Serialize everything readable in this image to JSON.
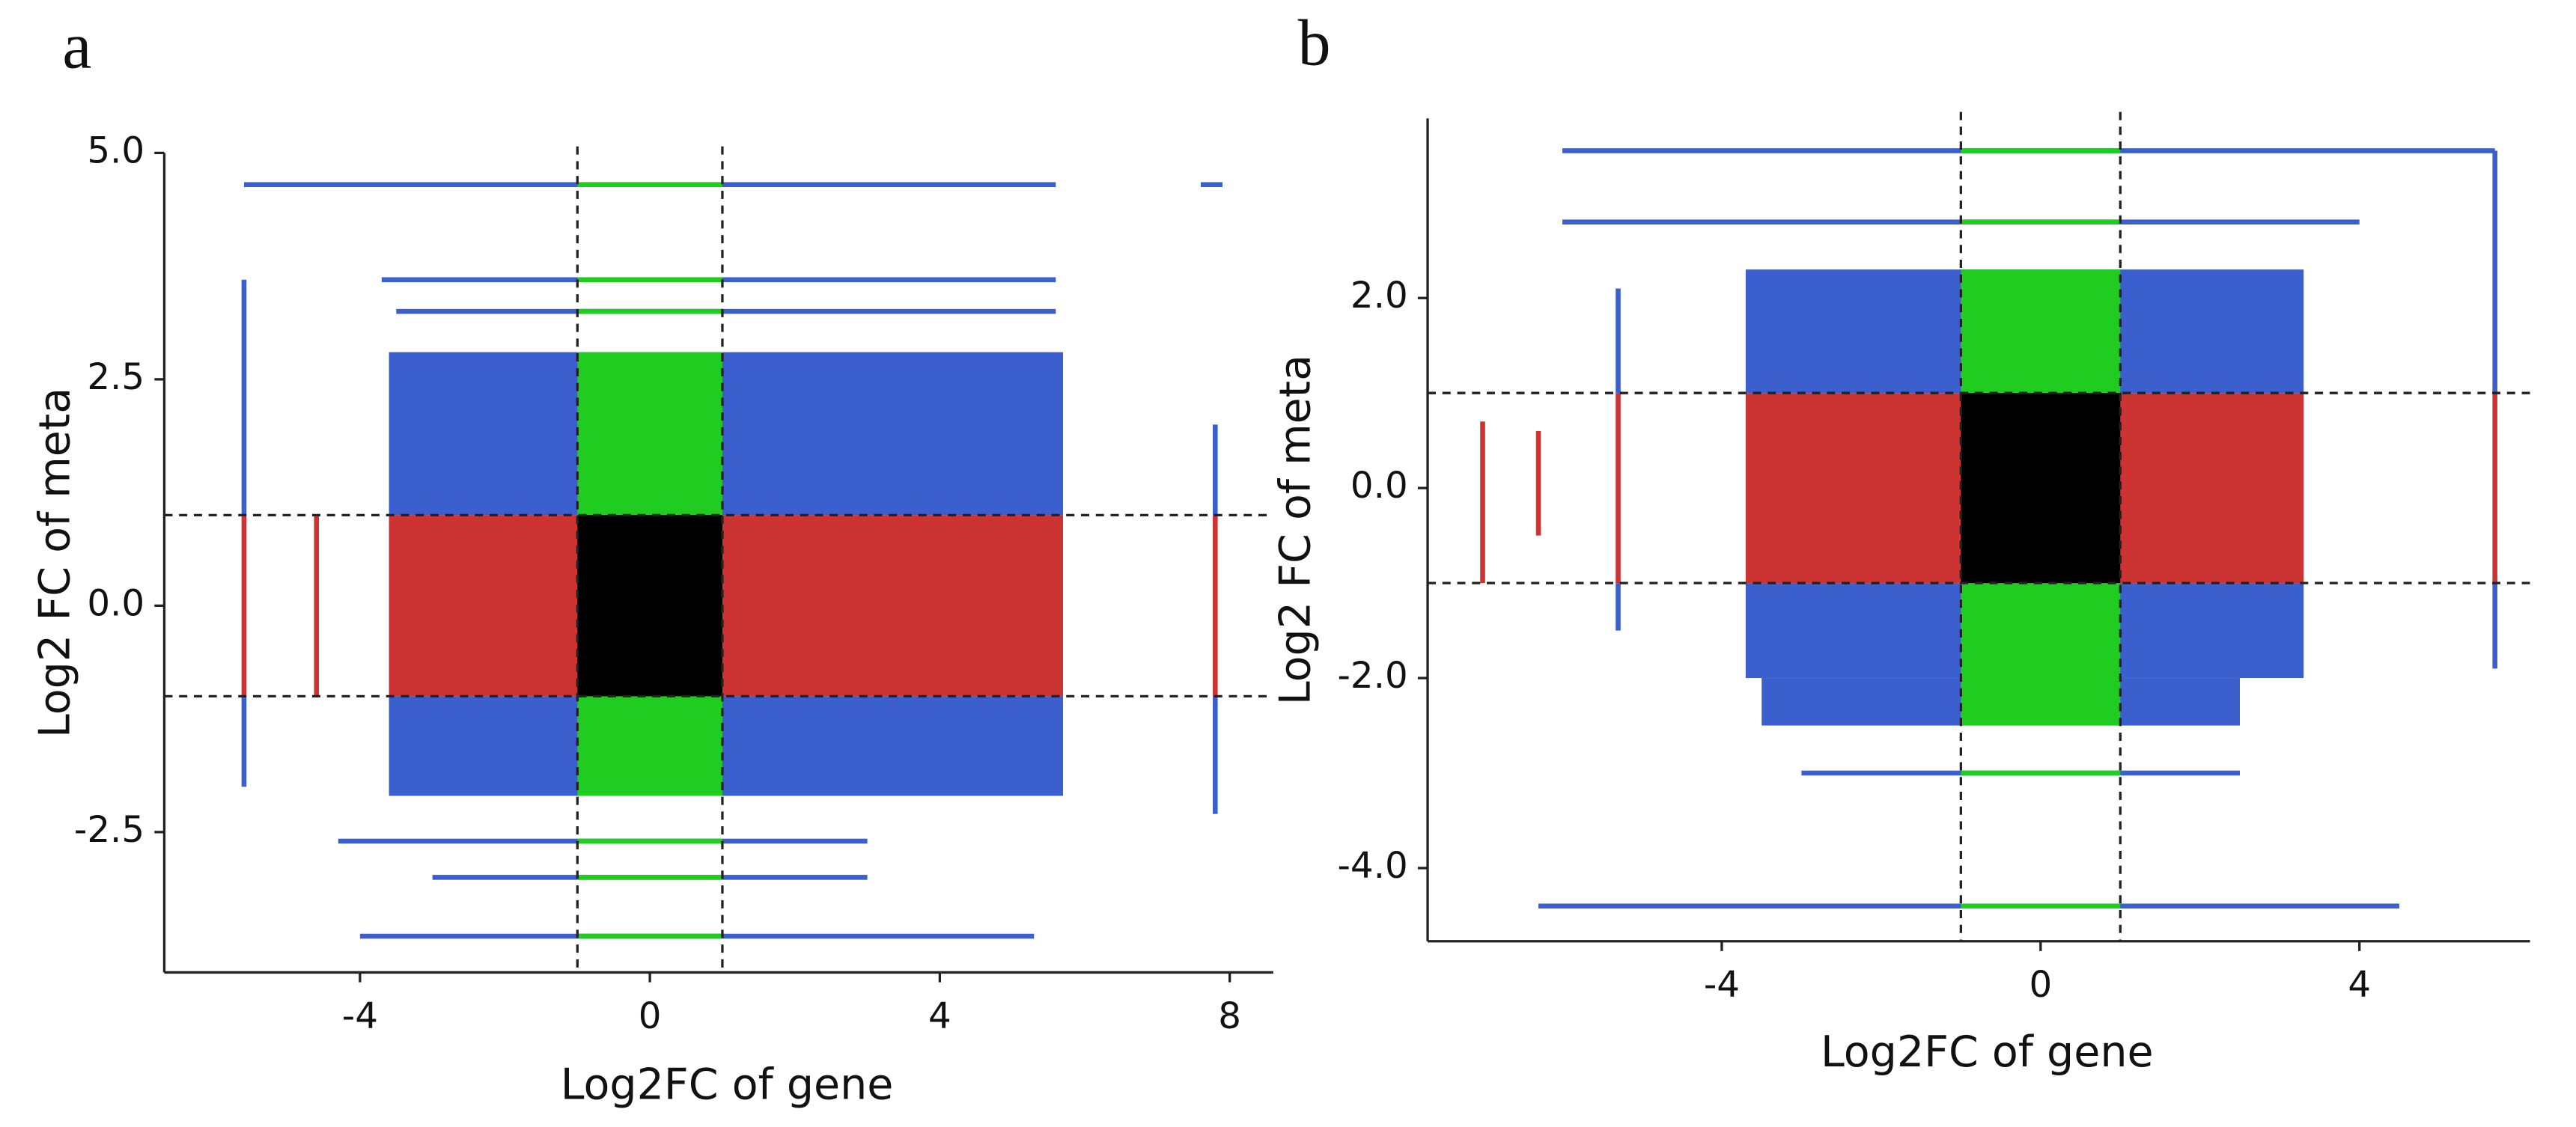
{
  "chart_data": [
    {
      "type": "scatter",
      "panel_label": "a",
      "xlabel": "Log2FC of gene",
      "ylabel": "Log2 FC of meta",
      "xlim": [
        -6.7,
        8.6
      ],
      "ylim": [
        -4.05,
        5.0
      ],
      "xticks": [
        -4,
        0,
        4,
        8
      ],
      "yticks": [
        {
          "value": 5.0,
          "label": "5.0"
        },
        2.5,
        {
          "value": 0.0,
          "label": "0.0"
        },
        -2.5
      ],
      "hlines": [
        -1,
        1
      ],
      "vlines": [
        -1,
        1
      ],
      "bands": [
        {
          "x": [
            -3.6,
            5.7
          ],
          "y": [
            1,
            2.8
          ],
          "color": "#3b5fcd"
        },
        {
          "x": [
            -1,
            1
          ],
          "y": [
            1,
            2.8
          ],
          "color": "#1fcc1f"
        },
        {
          "x": [
            -3.6,
            5.7
          ],
          "y": [
            -2.1,
            -1
          ],
          "color": "#3b5fcd"
        },
        {
          "x": [
            -1,
            1
          ],
          "y": [
            -2.1,
            -1
          ],
          "color": "#1fcc1f"
        },
        {
          "x": [
            -3.6,
            5.7
          ],
          "y": [
            -1,
            1
          ],
          "color": "#cc3333"
        },
        {
          "x": [
            -1,
            1
          ],
          "y": [
            -1,
            1
          ],
          "color": "#000000"
        },
        {
          "x": [
            -5.6,
            5.6
          ],
          "y": [
            4.65,
            4.65
          ],
          "color": "#3b5fcd"
        },
        {
          "x": [
            -1,
            1
          ],
          "y": [
            4.65,
            4.65
          ],
          "color": "#1fcc1f"
        },
        {
          "x": [
            7.6,
            7.9
          ],
          "y": [
            4.65,
            4.65
          ],
          "color": "#3b5fcd"
        },
        {
          "x": [
            -3.7,
            5.6
          ],
          "y": [
            3.6,
            3.6
          ],
          "color": "#3b5fcd"
        },
        {
          "x": [
            -1,
            1
          ],
          "y": [
            3.6,
            3.6
          ],
          "color": "#1fcc1f"
        },
        {
          "x": [
            -3.5,
            5.6
          ],
          "y": [
            3.25,
            3.25
          ],
          "color": "#3b5fcd"
        },
        {
          "x": [
            -1,
            1
          ],
          "y": [
            3.25,
            3.25
          ],
          "color": "#1fcc1f"
        },
        {
          "x": [
            -4.3,
            3
          ],
          "y": [
            -2.6,
            -2.6
          ],
          "color": "#3b5fcd"
        },
        {
          "x": [
            -1,
            1
          ],
          "y": [
            -2.6,
            -2.6
          ],
          "color": "#1fcc1f"
        },
        {
          "x": [
            -3,
            3
          ],
          "y": [
            -3.0,
            -3.0
          ],
          "color": "#3b5fcd"
        },
        {
          "x": [
            -1,
            1
          ],
          "y": [
            -3.0,
            -3.0
          ],
          "color": "#1fcc1f"
        },
        {
          "x": [
            -4,
            5.3
          ],
          "y": [
            -3.65,
            -3.65
          ],
          "color": "#3b5fcd"
        },
        {
          "x": [
            -1,
            1
          ],
          "y": [
            -3.65,
            -3.65
          ],
          "color": "#1fcc1f"
        },
        {
          "x": [
            -5.6,
            -5.6
          ],
          "y": [
            -1,
            1
          ],
          "color": "#cc3333"
        },
        {
          "x": [
            -5.6,
            -5.6
          ],
          "y": [
            1,
            3.6
          ],
          "color": "#3b5fcd"
        },
        {
          "x": [
            -5.6,
            -5.6
          ],
          "y": [
            -2,
            -1
          ],
          "color": "#3b5fcd"
        },
        {
          "x": [
            -4.6,
            -4.6
          ],
          "y": [
            -1,
            1
          ],
          "color": "#cc3333"
        },
        {
          "x": [
            7.8,
            7.8
          ],
          "y": [
            -1,
            1
          ],
          "color": "#cc3333"
        },
        {
          "x": [
            7.8,
            7.8
          ],
          "y": [
            1,
            2
          ],
          "color": "#3b5fcd"
        },
        {
          "x": [
            7.8,
            7.8
          ],
          "y": [
            -2.3,
            -1
          ],
          "color": "#3b5fcd"
        }
      ]
    },
    {
      "type": "scatter",
      "panel_label": "b",
      "xlabel": "Log2FC of gene",
      "ylabel": "Log2 FC of meta",
      "xlim": [
        -7.69,
        6.14
      ],
      "ylim": [
        -4.77,
        3.89
      ],
      "xticks": [
        -4,
        0,
        4
      ],
      "yticks": [
        {
          "value": 2.0,
          "label": "2.0"
        },
        {
          "value": 0.0,
          "label": "0.0"
        },
        {
          "value": -2.0,
          "label": "-2.0"
        },
        {
          "value": -4.0,
          "label": "-4.0"
        }
      ],
      "hlines": [
        -1,
        1
      ],
      "vlines": [
        -1,
        1
      ],
      "bands": [
        {
          "x": [
            -3.7,
            3.3
          ],
          "y": [
            1,
            2.3
          ],
          "color": "#3b5fcd"
        },
        {
          "x": [
            -1,
            1
          ],
          "y": [
            1,
            2.3
          ],
          "color": "#1fcc1f"
        },
        {
          "x": [
            -3.7,
            3.3
          ],
          "y": [
            -2.0,
            -1
          ],
          "color": "#3b5fcd"
        },
        {
          "x": [
            -3.5,
            2.5
          ],
          "y": [
            -2.5,
            -2.0
          ],
          "color": "#3b5fcd"
        },
        {
          "x": [
            -1,
            1
          ],
          "y": [
            -2.5,
            -1
          ],
          "color": "#1fcc1f"
        },
        {
          "x": [
            -3.7,
            3.3
          ],
          "y": [
            -1,
            1
          ],
          "color": "#cc3333"
        },
        {
          "x": [
            -1,
            1
          ],
          "y": [
            -1,
            1
          ],
          "color": "#000000"
        },
        {
          "x": [
            -6,
            5.7
          ],
          "y": [
            3.55,
            3.55
          ],
          "color": "#3b5fcd"
        },
        {
          "x": [
            -1,
            1
          ],
          "y": [
            3.55,
            3.55
          ],
          "color": "#1fcc1f"
        },
        {
          "x": [
            -6,
            4
          ],
          "y": [
            2.8,
            2.8
          ],
          "color": "#3b5fcd"
        },
        {
          "x": [
            -1,
            1
          ],
          "y": [
            2.8,
            2.8
          ],
          "color": "#1fcc1f"
        },
        {
          "x": [
            -3,
            2.5
          ],
          "y": [
            -3.0,
            -3.0
          ],
          "color": "#3b5fcd"
        },
        {
          "x": [
            -1,
            1
          ],
          "y": [
            -3.0,
            -3.0
          ],
          "color": "#1fcc1f"
        },
        {
          "x": [
            -6.3,
            4.5
          ],
          "y": [
            -4.4,
            -4.4
          ],
          "color": "#3b5fcd"
        },
        {
          "x": [
            -1,
            1
          ],
          "y": [
            -4.4,
            -4.4
          ],
          "color": "#1fcc1f"
        },
        {
          "x": [
            -5.3,
            -5.3
          ],
          "y": [
            -1,
            1
          ],
          "color": "#cc3333"
        },
        {
          "x": [
            -5.3,
            -5.3
          ],
          "y": [
            1,
            2.1
          ],
          "color": "#3b5fcd"
        },
        {
          "x": [
            -5.3,
            -5.3
          ],
          "y": [
            -1.5,
            -1
          ],
          "color": "#3b5fcd"
        },
        {
          "x": [
            -7.0,
            -7.0
          ],
          "y": [
            -1,
            0.7
          ],
          "color": "#cc3333"
        },
        {
          "x": [
            -6.3,
            -6.3
          ],
          "y": [
            -0.5,
            0.6
          ],
          "color": "#cc3333"
        },
        {
          "x": [
            5.7,
            5.7
          ],
          "y": [
            -1,
            1
          ],
          "color": "#cc3333"
        },
        {
          "x": [
            5.7,
            5.7
          ],
          "y": [
            1,
            3.55
          ],
          "color": "#3b5fcd"
        },
        {
          "x": [
            5.7,
            5.7
          ],
          "y": [
            -1.9,
            -1
          ],
          "color": "#3b5fcd"
        }
      ]
    }
  ]
}
